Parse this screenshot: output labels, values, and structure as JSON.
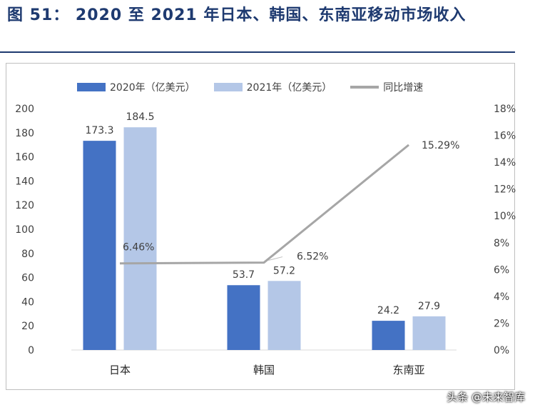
{
  "title": "图 51： 2020 至 2021 年日本、韩国、东南亚移动市场收入",
  "colors": {
    "series_2020": "#4472c4",
    "series_2021": "#b4c7e7",
    "growth_line": "#a6a6a6",
    "axis_text": "#404040"
  },
  "watermark": "头条 @未来智库",
  "chart_data": {
    "type": "bar",
    "categories": [
      "日本",
      "韩国",
      "东南亚"
    ],
    "series": [
      {
        "name": "2020年（亿美元）",
        "type": "bar",
        "axis": "left",
        "values": [
          173.3,
          53.7,
          24.2
        ],
        "labels": [
          "173.3",
          "53.7",
          "24.2"
        ]
      },
      {
        "name": "2021年（亿美元）",
        "type": "bar",
        "axis": "left",
        "values": [
          184.5,
          57.2,
          27.9
        ],
        "labels": [
          "184.5",
          "57.2",
          "27.9"
        ]
      },
      {
        "name": "同比增速",
        "type": "line",
        "axis": "right",
        "values": [
          6.46,
          6.52,
          15.29
        ],
        "labels": [
          "6.46%",
          "6.52%",
          "15.29%"
        ]
      }
    ],
    "y_left": {
      "min": 0,
      "max": 200,
      "step": 20,
      "ticks": [
        "0",
        "20",
        "40",
        "60",
        "80",
        "100",
        "120",
        "140",
        "160",
        "180",
        "200"
      ]
    },
    "y_right": {
      "min": 0,
      "max": 18,
      "step": 2,
      "ticks": [
        "0%",
        "2%",
        "4%",
        "6%",
        "8%",
        "10%",
        "12%",
        "14%",
        "16%",
        "18%"
      ]
    },
    "legend_position": "top",
    "grid": false
  }
}
